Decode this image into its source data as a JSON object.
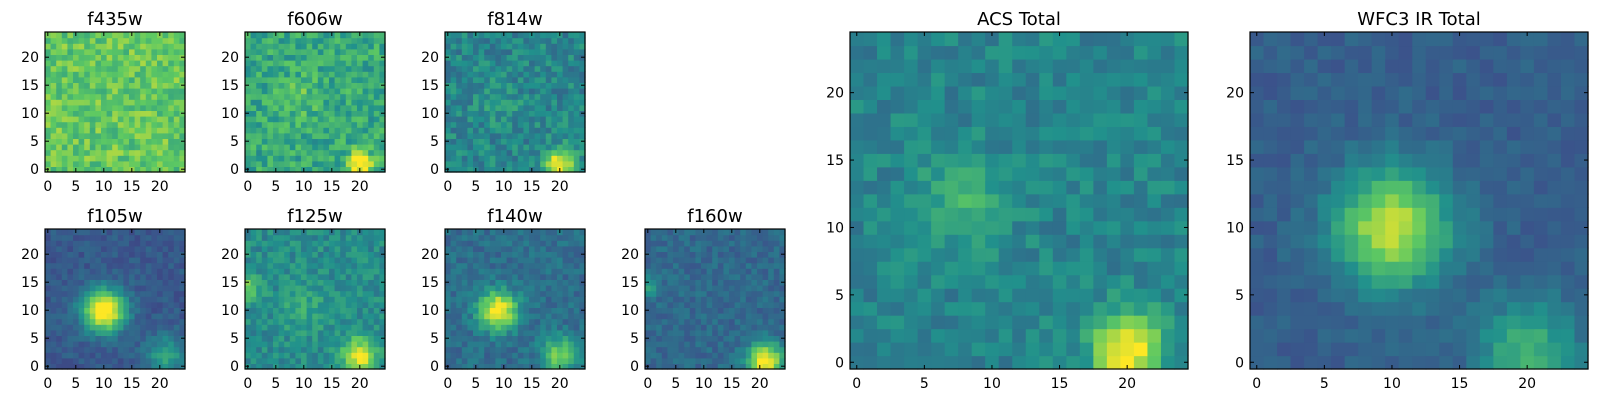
{
  "figure": {
    "colormap": "viridis",
    "colors": [
      "#440154",
      "#3b528b",
      "#21918c",
      "#5ec962",
      "#fde725"
    ]
  },
  "chart_data": [
    {
      "type": "heatmap",
      "name": "f435w",
      "title": "f435w",
      "grid": 25,
      "xlim": [
        0,
        24
      ],
      "ylim": [
        0,
        24
      ],
      "xticks": [
        0,
        5,
        10,
        15,
        20
      ],
      "yticks": [
        0,
        5,
        10,
        15,
        20
      ],
      "noise": 0.13,
      "background": 0.74,
      "sources": [],
      "seed": 3
    },
    {
      "type": "heatmap",
      "name": "f606w",
      "title": "f606w",
      "grid": 25,
      "xlim": [
        0,
        24
      ],
      "ylim": [
        0,
        24
      ],
      "xticks": [
        0,
        5,
        10,
        15,
        20
      ],
      "yticks": [
        0,
        5,
        10,
        15,
        20
      ],
      "noise": 0.14,
      "background": 0.6,
      "sources": [
        {
          "x": 9,
          "y": 13,
          "amp": 0.12,
          "sigma": 2.5
        },
        {
          "x": 20,
          "y": 1,
          "amp": 0.45,
          "sigma": 1.6
        }
      ],
      "seed": 7
    },
    {
      "type": "heatmap",
      "name": "f814w",
      "title": "f814w",
      "grid": 25,
      "xlim": [
        0,
        24
      ],
      "ylim": [
        0,
        24
      ],
      "xticks": [
        0,
        5,
        10,
        15,
        20
      ],
      "yticks": [
        0,
        5,
        10,
        15,
        20
      ],
      "noise": 0.12,
      "background": 0.46,
      "sources": [
        {
          "x": 9,
          "y": 12,
          "amp": 0.1,
          "sigma": 2.5
        },
        {
          "x": 20,
          "y": 1,
          "amp": 0.6,
          "sigma": 1.8
        }
      ],
      "seed": 11
    },
    {
      "type": "heatmap",
      "name": "f105w",
      "title": "f105w",
      "grid": 25,
      "xlim": [
        0,
        24
      ],
      "ylim": [
        0,
        24
      ],
      "xticks": [
        0,
        5,
        10,
        15,
        20
      ],
      "yticks": [
        0,
        5,
        10,
        15,
        20
      ],
      "noise": 0.06,
      "background": 0.28,
      "sources": [
        {
          "x": 10,
          "y": 10,
          "amp": 0.85,
          "sigma": 2.6
        },
        {
          "x": 21,
          "y": 2,
          "amp": 0.3,
          "sigma": 2.5
        }
      ],
      "seed": 13
    },
    {
      "type": "heatmap",
      "name": "f125w",
      "title": "f125w",
      "grid": 25,
      "xlim": [
        0,
        24
      ],
      "ylim": [
        0,
        24
      ],
      "xticks": [
        0,
        5,
        10,
        15,
        20
      ],
      "yticks": [
        0,
        5,
        10,
        15,
        20
      ],
      "noise": 0.1,
      "background": 0.48,
      "sources": [
        {
          "x": 20,
          "y": 2,
          "amp": 0.5,
          "sigma": 2.2
        },
        {
          "x": 0,
          "y": 14,
          "amp": 0.35,
          "sigma": 1.5
        },
        {
          "x": 10,
          "y": 10,
          "amp": 0.12,
          "sigma": 3
        }
      ],
      "seed": 17
    },
    {
      "type": "heatmap",
      "name": "f140w",
      "title": "f140w",
      "grid": 25,
      "xlim": [
        0,
        24
      ],
      "ylim": [
        0,
        24
      ],
      "xticks": [
        0,
        5,
        10,
        15,
        20
      ],
      "yticks": [
        0,
        5,
        10,
        15,
        20
      ],
      "noise": 0.08,
      "background": 0.36,
      "sources": [
        {
          "x": 9,
          "y": 10,
          "amp": 0.7,
          "sigma": 2.4
        },
        {
          "x": 20,
          "y": 2,
          "amp": 0.45,
          "sigma": 2.2
        }
      ],
      "seed": 19
    },
    {
      "type": "heatmap",
      "name": "f160w",
      "title": "f160w",
      "grid": 25,
      "xlim": [
        0,
        24
      ],
      "ylim": [
        0,
        24
      ],
      "xticks": [
        0,
        5,
        10,
        15,
        20
      ],
      "yticks": [
        0,
        5,
        10,
        15,
        20
      ],
      "noise": 0.07,
      "background": 0.34,
      "sources": [
        {
          "x": 21,
          "y": 1,
          "amp": 0.7,
          "sigma": 2.2
        },
        {
          "x": 0,
          "y": 14,
          "amp": 0.3,
          "sigma": 1.2
        }
      ],
      "seed": 23
    },
    {
      "type": "heatmap",
      "name": "acs-total",
      "title": "ACS Total",
      "grid": 25,
      "xlim": [
        0,
        24
      ],
      "ylim": [
        0,
        24
      ],
      "xticks": [
        0,
        5,
        10,
        15,
        20
      ],
      "yticks": [
        0,
        5,
        10,
        15,
        20
      ],
      "noise": 0.09,
      "background": 0.45,
      "sources": [
        {
          "x": 8,
          "y": 12,
          "amp": 0.22,
          "sigma": 2.2
        },
        {
          "x": 20,
          "y": 1,
          "amp": 0.6,
          "sigma": 1.8
        }
      ],
      "seed": 29
    },
    {
      "type": "heatmap",
      "name": "wfc3-ir-total",
      "title": "WFC3 IR Total",
      "grid": 25,
      "xlim": [
        0,
        24
      ],
      "ylim": [
        0,
        24
      ],
      "xticks": [
        0,
        5,
        10,
        15,
        20
      ],
      "yticks": [
        0,
        5,
        10,
        15,
        20
      ],
      "noise": 0.05,
      "background": 0.3,
      "sources": [
        {
          "x": 10,
          "y": 10,
          "amp": 0.62,
          "sigma": 3
        },
        {
          "x": 20,
          "y": 1,
          "amp": 0.35,
          "sigma": 2.5
        }
      ],
      "seed": 31
    }
  ]
}
